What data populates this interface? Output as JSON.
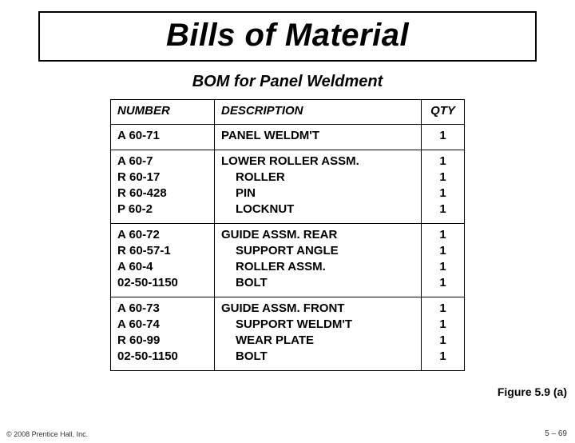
{
  "title": "Bills of Material",
  "subtitle": "BOM for Panel Weldment",
  "figure_label": "Figure 5.9 (a)",
  "copyright": "© 2008 Prentice Hall, Inc.",
  "page_number": "5 – 69",
  "table": {
    "headers": {
      "number": "NUMBER",
      "description": "DESCRIPTION",
      "qty": "QTY"
    },
    "rows": [
      {
        "numbers": [
          "A 60-71"
        ],
        "descriptions": [
          {
            "text": "PANEL WELDM'T",
            "indent": false
          }
        ],
        "qtys": [
          "1"
        ]
      },
      {
        "numbers": [
          "A 60-7",
          "R 60-17",
          "R 60-428",
          "P 60-2"
        ],
        "descriptions": [
          {
            "text": "LOWER ROLLER ASSM.",
            "indent": false
          },
          {
            "text": "ROLLER",
            "indent": true
          },
          {
            "text": "PIN",
            "indent": true
          },
          {
            "text": "LOCKNUT",
            "indent": true
          }
        ],
        "qtys": [
          "1",
          "1",
          "1",
          "1"
        ]
      },
      {
        "numbers": [
          "A 60-72",
          "R 60-57-1",
          "A 60-4",
          "02-50-1150"
        ],
        "descriptions": [
          {
            "text": "GUIDE ASSM. REAR",
            "indent": false
          },
          {
            "text": "SUPPORT ANGLE",
            "indent": true
          },
          {
            "text": "ROLLER ASSM.",
            "indent": true
          },
          {
            "text": "BOLT",
            "indent": true
          }
        ],
        "qtys": [
          "1",
          "1",
          "1",
          "1"
        ]
      },
      {
        "numbers": [
          "A 60-73",
          "A 60-74",
          "R 60-99",
          "02-50-1150"
        ],
        "descriptions": [
          {
            "text": "GUIDE ASSM. FRONT",
            "indent": false
          },
          {
            "text": "SUPPORT WELDM'T",
            "indent": true
          },
          {
            "text": "WEAR PLATE",
            "indent": true
          },
          {
            "text": "BOLT",
            "indent": true
          }
        ],
        "qtys": [
          "1",
          "1",
          "1",
          "1"
        ]
      }
    ]
  }
}
